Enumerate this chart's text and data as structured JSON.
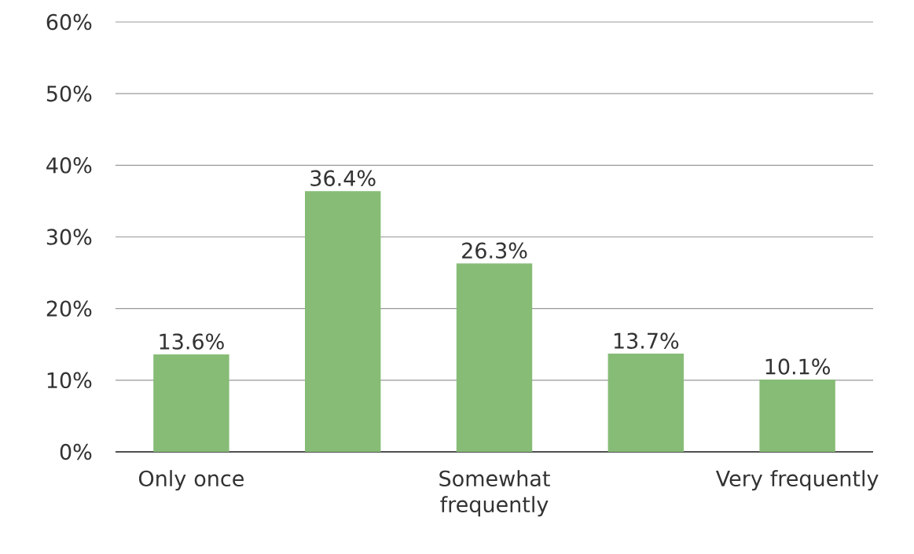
{
  "chart_data": {
    "type": "bar",
    "categories": [
      "Only once",
      null,
      "Somewhat frequently",
      null,
      "Very frequently"
    ],
    "values": [
      13.6,
      36.4,
      26.3,
      13.7,
      10.1
    ],
    "value_labels": [
      "13.6%",
      "36.4%",
      "26.3%",
      "13.7%",
      "10.1%"
    ],
    "color": "#86bc76",
    "ylim": [
      0,
      60
    ],
    "yticks": [
      {
        "value": 0,
        "label": "0%"
      },
      {
        "value": 10,
        "label": "10%"
      },
      {
        "value": 20,
        "label": "20%"
      },
      {
        "value": 30,
        "label": "30%"
      },
      {
        "value": 40,
        "label": "40%"
      },
      {
        "value": 50,
        "label": "50%"
      },
      {
        "value": 60,
        "label": "60%"
      }
    ],
    "grid": "y"
  }
}
